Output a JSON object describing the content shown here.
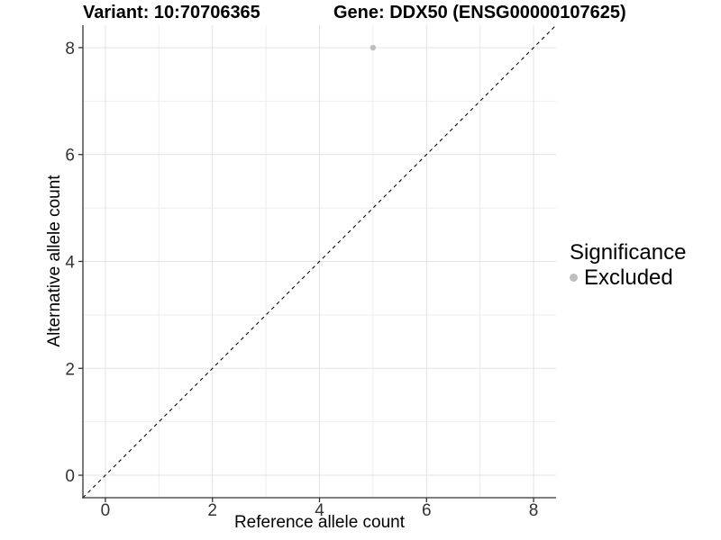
{
  "header": {
    "title_left": "Variant: 10:70706365",
    "title_right": "Gene: DDX50 (ENSG00000107625)"
  },
  "chart_data": {
    "type": "scatter",
    "title": "Variant: 10:70706365   Gene: DDX50 (ENSG00000107625)",
    "xlabel": "Reference allele count",
    "ylabel": "Alternative allele count",
    "xlim": [
      -0.42,
      8.42
    ],
    "ylim": [
      -0.42,
      8.42
    ],
    "x_ticks": [
      0,
      2,
      4,
      6,
      8
    ],
    "y_ticks": [
      0,
      2,
      4,
      6,
      8
    ],
    "x_minor_ticks": [
      1,
      3,
      5,
      7
    ],
    "y_minor_ticks": [
      1,
      3,
      5,
      7
    ],
    "grid": true,
    "series": [
      {
        "name": "Excluded",
        "color": "#bebebe",
        "points": [
          {
            "x": 5,
            "y": 8
          }
        ]
      }
    ],
    "reference_line": {
      "type": "identity",
      "from": -0.42,
      "to": 8.42,
      "style": "dashed",
      "color": "#000000"
    },
    "legend": {
      "position": "right",
      "title": "Significance",
      "entries": [
        {
          "label": "Excluded",
          "color": "#bebebe"
        }
      ]
    }
  },
  "colors": {
    "background": "#ffffff",
    "grid_major": "#e3e3e3",
    "grid_minor": "#eeeeee",
    "axis_line": "#333333",
    "tick_label": "#333333",
    "point_radius": 3.2
  }
}
